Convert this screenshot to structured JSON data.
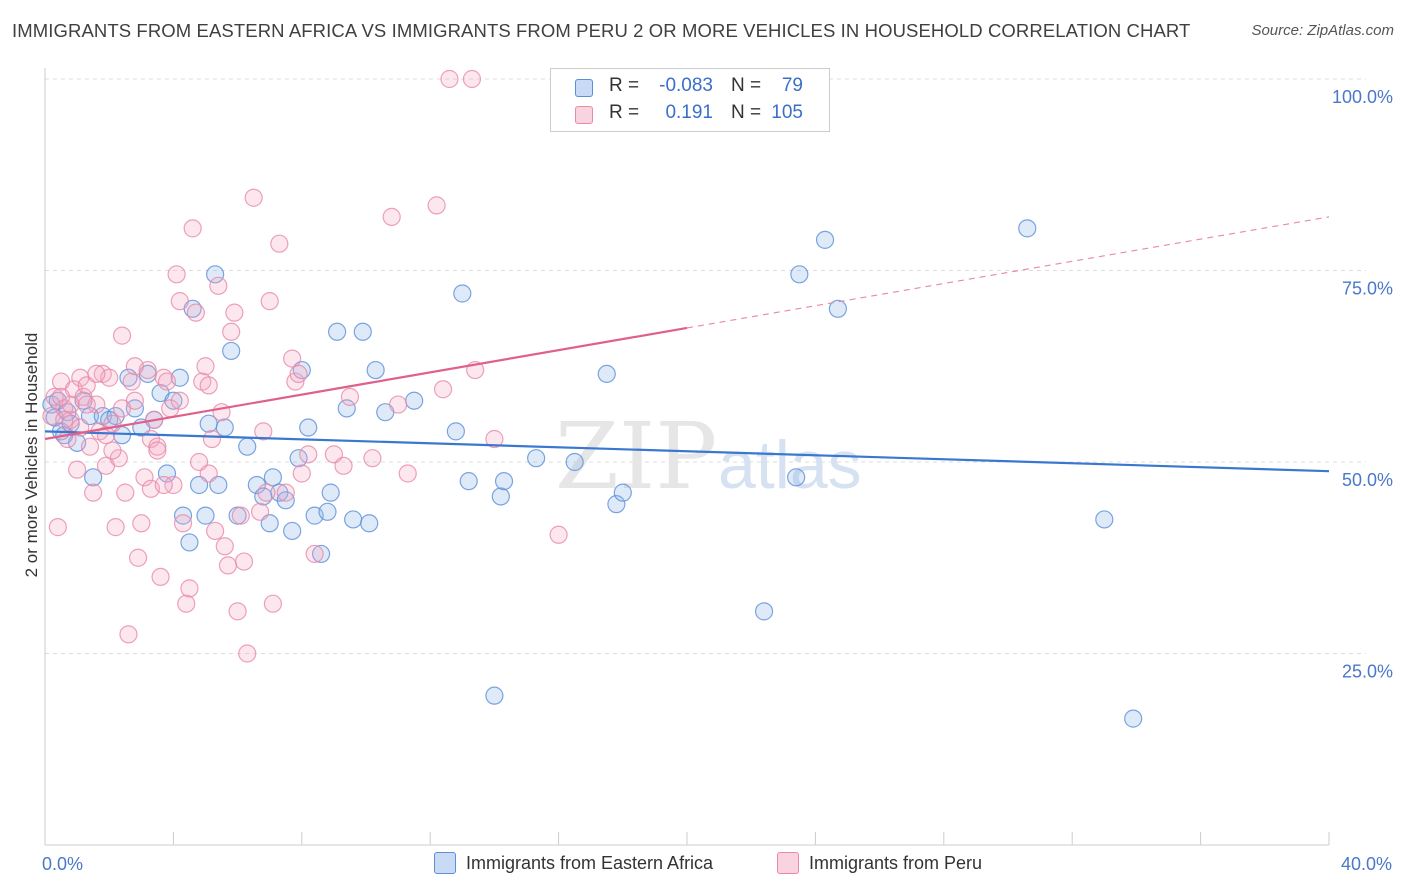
{
  "title": "IMMIGRANTS FROM EASTERN AFRICA VS IMMIGRANTS FROM PERU 2 OR MORE VEHICLES IN HOUSEHOLD CORRELATION CHART",
  "source": "Source: ZipAtlas.com",
  "watermark": {
    "zip": "ZIP",
    "atlas": "atlas"
  },
  "legend": {
    "rows": [
      {
        "r_label": "R =",
        "r_value": "-0.083",
        "n_label": "N =",
        "n_value": "79",
        "color": "#5b8fd9"
      },
      {
        "r_label": "R =",
        "r_value": "0.191",
        "n_label": "N =",
        "n_value": "105",
        "color": "#e889a8"
      }
    ]
  },
  "bottom_legend": [
    {
      "label": "Immigrants from Eastern Africa",
      "color": "#5b8fd9"
    },
    {
      "label": "Immigrants from Peru",
      "color": "#e889a8"
    }
  ],
  "chart_data": {
    "type": "scatter",
    "ylabel": "2 or more Vehicles in Household",
    "xlabel": "",
    "xlim": [
      0,
      40
    ],
    "ylim": [
      0,
      105
    ],
    "x_tick_labels": [
      "0.0%",
      "40.0%"
    ],
    "y_tick_labels": [
      "25.0%",
      "50.0%",
      "75.0%",
      "100.0%"
    ],
    "y_ticks": [
      25,
      50,
      75,
      100
    ],
    "grid": "horizontal dashed",
    "legend_position": "top-center",
    "series": [
      {
        "name": "Immigrants from Eastern Africa",
        "color": "#5b8fd9",
        "trend": {
          "x": [
            0,
            40
          ],
          "y": [
            54.0,
            48.8
          ],
          "style": "solid"
        },
        "points": [
          [
            0.2,
            57.5
          ],
          [
            0.3,
            55.8
          ],
          [
            0.4,
            58.0
          ],
          [
            0.5,
            54.0
          ],
          [
            0.6,
            53.5
          ],
          [
            0.7,
            56.5
          ],
          [
            0.8,
            55.0
          ],
          [
            1.0,
            52.5
          ],
          [
            1.2,
            58.0
          ],
          [
            1.4,
            56.0
          ],
          [
            1.5,
            48.0
          ],
          [
            1.8,
            56.0
          ],
          [
            2.0,
            55.5
          ],
          [
            2.2,
            56.0
          ],
          [
            2.4,
            53.5
          ],
          [
            2.6,
            61.0
          ],
          [
            2.8,
            57.0
          ],
          [
            3.0,
            54.5
          ],
          [
            3.2,
            61.5
          ],
          [
            3.4,
            55.5
          ],
          [
            3.6,
            59.0
          ],
          [
            3.8,
            48.5
          ],
          [
            4.0,
            58.0
          ],
          [
            4.2,
            61.0
          ],
          [
            4.3,
            43.0
          ],
          [
            4.5,
            39.5
          ],
          [
            4.6,
            70.0
          ],
          [
            4.8,
            47.0
          ],
          [
            5.0,
            43.0
          ],
          [
            5.1,
            55.0
          ],
          [
            5.3,
            74.5
          ],
          [
            5.4,
            47.0
          ],
          [
            5.6,
            54.5
          ],
          [
            5.8,
            64.5
          ],
          [
            6.0,
            43.0
          ],
          [
            6.3,
            52.0
          ],
          [
            6.6,
            47.0
          ],
          [
            6.8,
            45.5
          ],
          [
            7.0,
            42.0
          ],
          [
            7.1,
            48.0
          ],
          [
            7.3,
            46.0
          ],
          [
            7.5,
            45.0
          ],
          [
            7.7,
            41.0
          ],
          [
            7.9,
            50.5
          ],
          [
            8.0,
            62.0
          ],
          [
            8.2,
            54.5
          ],
          [
            8.4,
            43.0
          ],
          [
            8.6,
            38.0
          ],
          [
            8.8,
            43.5
          ],
          [
            8.9,
            46.0
          ],
          [
            9.1,
            67.0
          ],
          [
            9.4,
            57.0
          ],
          [
            9.6,
            42.5
          ],
          [
            9.9,
            67.0
          ],
          [
            10.1,
            42.0
          ],
          [
            10.3,
            62.0
          ],
          [
            10.6,
            56.5
          ],
          [
            11.5,
            58.0
          ],
          [
            12.8,
            54.0
          ],
          [
            13.0,
            72.0
          ],
          [
            13.2,
            47.5
          ],
          [
            14.0,
            19.5
          ],
          [
            14.2,
            45.5
          ],
          [
            14.3,
            47.5
          ],
          [
            15.3,
            50.5
          ],
          [
            16.5,
            50.0
          ],
          [
            17.5,
            61.5
          ],
          [
            17.8,
            44.5
          ],
          [
            18.0,
            46.0
          ],
          [
            22.4,
            30.5
          ],
          [
            23.4,
            48.0
          ],
          [
            23.5,
            74.5
          ],
          [
            24.3,
            79.0
          ],
          [
            24.7,
            70.0
          ],
          [
            30.6,
            80.5
          ],
          [
            33.0,
            42.5
          ],
          [
            33.9,
            16.5
          ]
        ]
      },
      {
        "name": "Immigrants from Peru",
        "color": "#e889a8",
        "trend": {
          "x": [
            0,
            20,
            40
          ],
          "y": [
            53.0,
            67.5,
            82.0
          ],
          "style": "solid-then-dashed"
        },
        "points": [
          [
            0.2,
            56.0
          ],
          [
            0.3,
            58.5
          ],
          [
            0.4,
            41.5
          ],
          [
            0.5,
            60.5
          ],
          [
            0.6,
            57.0
          ],
          [
            0.7,
            53.0
          ],
          [
            0.8,
            55.5
          ],
          [
            0.9,
            59.5
          ],
          [
            1.0,
            49.0
          ],
          [
            1.1,
            61.0
          ],
          [
            1.2,
            58.5
          ],
          [
            1.3,
            60.0
          ],
          [
            1.4,
            52.0
          ],
          [
            1.5,
            46.0
          ],
          [
            1.6,
            57.5
          ],
          [
            1.7,
            54.0
          ],
          [
            1.8,
            61.5
          ],
          [
            1.9,
            49.5
          ],
          [
            2.0,
            61.0
          ],
          [
            2.1,
            55.0
          ],
          [
            2.2,
            41.5
          ],
          [
            2.3,
            50.5
          ],
          [
            2.4,
            66.5
          ],
          [
            2.5,
            46.0
          ],
          [
            2.6,
            27.5
          ],
          [
            2.7,
            60.5
          ],
          [
            2.8,
            58.0
          ],
          [
            2.9,
            37.5
          ],
          [
            3.0,
            42.0
          ],
          [
            3.1,
            48.0
          ],
          [
            3.2,
            62.0
          ],
          [
            3.3,
            53.0
          ],
          [
            3.4,
            55.5
          ],
          [
            3.5,
            52.0
          ],
          [
            3.6,
            35.0
          ],
          [
            3.7,
            61.0
          ],
          [
            3.8,
            60.5
          ],
          [
            3.9,
            57.0
          ],
          [
            4.0,
            47.0
          ],
          [
            4.1,
            74.5
          ],
          [
            4.2,
            71.0
          ],
          [
            4.3,
            42.0
          ],
          [
            4.4,
            31.5
          ],
          [
            4.5,
            33.5
          ],
          [
            4.6,
            80.5
          ],
          [
            4.7,
            69.5
          ],
          [
            4.9,
            60.5
          ],
          [
            5.0,
            62.5
          ],
          [
            5.1,
            48.5
          ],
          [
            5.2,
            53.0
          ],
          [
            5.3,
            41.0
          ],
          [
            5.4,
            73.0
          ],
          [
            5.5,
            56.5
          ],
          [
            5.6,
            39.0
          ],
          [
            5.7,
            36.5
          ],
          [
            5.8,
            67.0
          ],
          [
            5.9,
            69.5
          ],
          [
            6.0,
            30.5
          ],
          [
            6.1,
            43.0
          ],
          [
            6.2,
            37.0
          ],
          [
            6.3,
            25.0
          ],
          [
            6.5,
            84.5
          ],
          [
            6.7,
            43.5
          ],
          [
            6.8,
            54.0
          ],
          [
            6.9,
            46.0
          ],
          [
            7.0,
            71.0
          ],
          [
            7.1,
            31.5
          ],
          [
            7.3,
            78.5
          ],
          [
            7.5,
            46.0
          ],
          [
            7.7,
            63.5
          ],
          [
            7.8,
            60.5
          ],
          [
            7.9,
            61.5
          ],
          [
            8.0,
            48.5
          ],
          [
            8.2,
            51.0
          ],
          [
            8.4,
            38.0
          ],
          [
            9.0,
            51.0
          ],
          [
            9.3,
            49.5
          ],
          [
            9.5,
            58.5
          ],
          [
            10.2,
            50.5
          ],
          [
            10.8,
            82.0
          ],
          [
            11.0,
            57.5
          ],
          [
            11.3,
            48.5
          ],
          [
            12.2,
            83.5
          ],
          [
            12.4,
            59.5
          ],
          [
            12.6,
            100.0
          ],
          [
            13.3,
            100.0
          ],
          [
            13.4,
            62.0
          ],
          [
            14.0,
            53.0
          ],
          [
            16.0,
            40.5
          ],
          [
            1.6,
            61.5
          ],
          [
            2.1,
            51.5
          ],
          [
            3.5,
            51.5
          ],
          [
            1.1,
            54.5
          ],
          [
            0.8,
            57.5
          ],
          [
            0.5,
            58.5
          ],
          [
            1.3,
            57.5
          ],
          [
            2.4,
            57.0
          ],
          [
            3.3,
            46.5
          ],
          [
            4.2,
            58.0
          ],
          [
            2.8,
            62.5
          ],
          [
            1.9,
            53.5
          ],
          [
            0.6,
            55.5
          ],
          [
            3.7,
            47.0
          ],
          [
            4.8,
            50.0
          ],
          [
            5.1,
            60.0
          ]
        ]
      }
    ]
  }
}
